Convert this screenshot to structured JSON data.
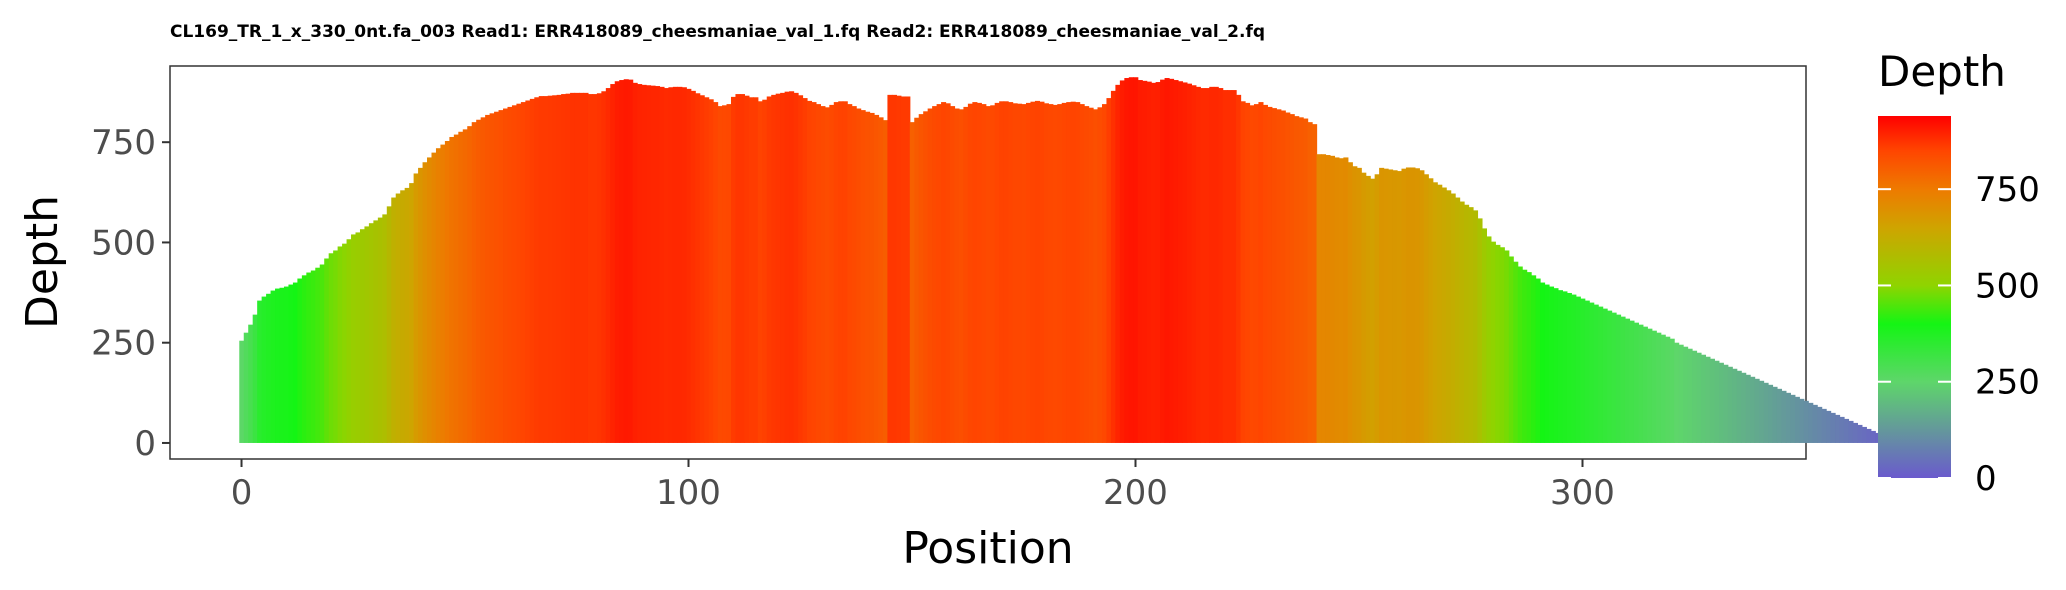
{
  "chart_data": {
    "type": "bar",
    "title": "CL169_TR_1_x_330_0nt.fa_003 Read1: ERR418089_cheesmaniae_val_1.fq Read2: ERR418089_cheesmaniae_val_2.fq",
    "xlabel": "Position",
    "ylabel": "Depth",
    "xlim": [
      -16,
      350
    ],
    "ylim": [
      -40,
      940
    ],
    "x_ticks": [
      0,
      100,
      200,
      300
    ],
    "y_ticks": [
      0,
      250,
      500,
      750
    ],
    "grid": false,
    "legend": {
      "title": "Depth",
      "placement": "right",
      "ticks": [
        0,
        250,
        500,
        750
      ],
      "range": [
        0,
        940
      ],
      "gradient": [
        {
          "value": 0,
          "color": "#6a5acd"
        },
        {
          "value": 250,
          "color": "#5ed66a"
        },
        {
          "value": 400,
          "color": "#14f514"
        },
        {
          "value": 500,
          "color": "#8fd400"
        },
        {
          "value": 650,
          "color": "#cfa400"
        },
        {
          "value": 750,
          "color": "#ee7a00"
        },
        {
          "value": 850,
          "color": "#ff4500"
        },
        {
          "value": 940,
          "color": "#ff0000"
        }
      ]
    },
    "series": [
      {
        "position_start": 0,
        "position_step": 1,
        "depth": [
          255,
          275,
          295,
          320,
          355,
          365,
          372,
          380,
          385,
          387,
          390,
          395,
          400,
          410,
          418,
          425,
          430,
          437,
          445,
          460,
          473,
          480,
          490,
          497,
          508,
          520,
          525,
          533,
          540,
          548,
          555,
          562,
          570,
          590,
          612,
          622,
          630,
          636,
          648,
          672,
          686,
          700,
          712,
          724,
          735,
          744,
          753,
          763,
          769,
          776,
          782,
          790,
          800,
          806,
          812,
          818,
          822,
          826,
          830,
          834,
          838,
          842,
          846,
          850,
          854,
          858,
          862,
          865,
          865,
          866,
          867,
          868,
          870,
          871,
          873,
          873,
          873,
          873,
          870,
          870,
          872,
          877,
          885,
          895,
          902,
          905,
          907,
          906,
          898,
          895,
          893,
          892,
          891,
          890,
          888,
          885,
          887,
          888,
          888,
          887,
          883,
          878,
          872,
          867,
          862,
          857,
          850,
          840,
          842,
          845,
          863,
          870,
          870,
          866,
          862,
          862,
          852,
          856,
          864,
          868,
          871,
          873,
          876,
          877,
          873,
          867,
          860,
          853,
          850,
          845,
          840,
          837,
          843,
          850,
          852,
          852,
          845,
          840,
          834,
          830,
          826,
          823,
          818,
          812,
          805,
          868,
          868,
          866,
          864,
          864,
          800,
          811,
          820,
          827,
          834,
          840,
          845,
          850,
          847,
          840,
          834,
          832,
          838,
          846,
          850,
          848,
          845,
          840,
          842,
          848,
          852,
          852,
          850,
          847,
          846,
          845,
          848,
          851,
          853,
          851,
          847,
          845,
          843,
          845,
          848,
          850,
          851,
          850,
          845,
          840,
          836,
          832,
          837,
          845,
          860,
          878,
          893,
          904,
          910,
          912,
          912,
          905,
          903,
          901,
          898,
          900,
          906,
          910,
          908,
          905,
          902,
          899,
          896,
          892,
          888,
          885,
          885,
          888,
          888,
          885,
          880,
          880,
          880,
          868,
          852,
          848,
          842,
          845,
          850,
          843,
          838,
          835,
          832,
          829,
          824,
          820,
          815,
          812,
          809,
          800,
          795,
          720,
          720,
          718,
          716,
          712,
          710,
          712,
          700,
          690,
          686,
          674,
          666,
          659,
          670,
          686,
          684,
          682,
          680,
          678,
          684,
          687,
          687,
          685,
          680,
          670,
          660,
          650,
          644,
          637,
          630,
          622,
          612,
          602,
          594,
          588,
          580,
          560,
          535,
          515,
          502,
          494,
          488,
          480,
          465,
          452,
          440,
          432,
          426,
          418,
          410,
          400,
          395,
          390,
          386,
          381,
          378,
          374,
          370,
          365,
          360,
          355,
          350,
          345,
          340,
          335,
          330,
          325,
          320,
          315,
          310,
          305,
          300,
          295,
          290,
          285,
          280,
          275,
          270,
          265,
          260,
          250,
          245,
          240,
          235,
          230,
          225,
          220,
          215,
          210,
          205,
          200,
          195,
          190,
          185,
          180,
          175,
          170,
          165,
          160,
          155,
          150,
          145,
          140,
          135,
          130,
          125,
          120,
          115,
          110,
          105,
          100,
          95,
          90,
          85,
          80,
          75,
          70,
          65,
          60,
          55,
          50,
          45,
          40,
          35,
          30,
          25,
          20,
          15,
          10,
          5,
          0
        ]
      }
    ]
  }
}
